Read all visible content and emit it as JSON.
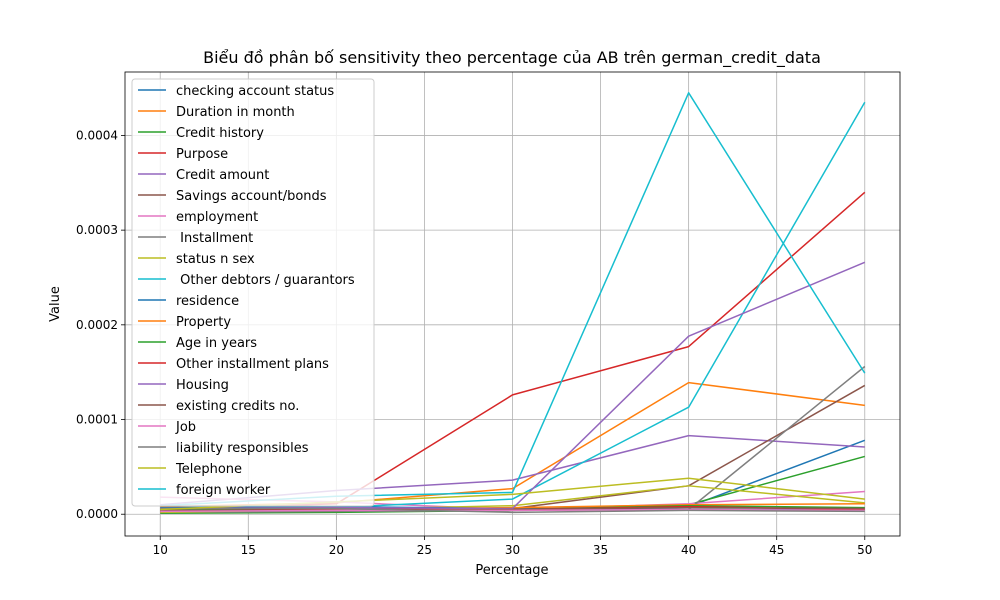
{
  "chart_data": {
    "type": "line",
    "title": "Biểu đồ phân bố sensitivity theo percentage của AB trên german_credit_data",
    "xlabel": "Percentage",
    "ylabel": "Value",
    "x": [
      10,
      20,
      30,
      40,
      50
    ],
    "xlim": [
      8,
      52
    ],
    "ylim": [
      -2.3e-05,
      0.000467
    ],
    "x_ticks": [
      10,
      15,
      20,
      25,
      30,
      35,
      40,
      45,
      50
    ],
    "x_tick_labels": [
      "10",
      "15",
      "20",
      "25",
      "30",
      "35",
      "40",
      "45",
      "50"
    ],
    "y_ticks": [
      0,
      0.0001,
      0.0002,
      0.0003,
      0.0004
    ],
    "y_tick_labels": [
      "0.0000",
      "0.0001",
      "0.0002",
      "0.0003",
      "0.0004"
    ],
    "grid": true,
    "legend_position": "top-left",
    "series": [
      {
        "name": "checking account status",
        "color": "#1f77b4",
        "values": [
          4e-06,
          5e-06,
          6e-06,
          8e-06,
          7.8e-05
        ]
      },
      {
        "name": "Duration in month",
        "color": "#ff7f0e",
        "values": [
          8e-06,
          1.2e-05,
          2.7e-05,
          0.000139,
          0.000115
        ]
      },
      {
        "name": "Credit history",
        "color": "#2ca02c",
        "values": [
          1e-06,
          2e-06,
          4e-06,
          1e-05,
          6.1e-05
        ]
      },
      {
        "name": "Purpose",
        "color": "#d62728",
        "values": [
          5e-06,
          1.1e-05,
          0.000126,
          0.000177,
          0.00034
        ]
      },
      {
        "name": "Credit amount",
        "color": "#9467bd",
        "values": [
          1e-05,
          2.5e-05,
          3.6e-05,
          8.3e-05,
          7.1e-05
        ]
      },
      {
        "name": "Savings account/bonds",
        "color": "#8c564b",
        "values": [
          3e-06,
          4e-06,
          6e-06,
          3e-05,
          0.000136
        ]
      },
      {
        "name": "employment",
        "color": "#e377c2",
        "values": [
          1.8e-05,
          1.3e-05,
          5e-06,
          1.1e-05,
          2.4e-05
        ]
      },
      {
        "name": " Installment",
        "color": "#7f7f7f",
        "values": [
          2e-06,
          3e-06,
          4e-06,
          5e-06,
          0.000156
        ]
      },
      {
        "name": "status n sex",
        "color": "#bcbd22",
        "values": [
          2e-06,
          5e-06,
          9e-06,
          3e-05,
          1.2e-05
        ]
      },
      {
        "name": " Other debtors / guarantors",
        "color": "#17becf",
        "values": [
          5e-06,
          7e-06,
          1.6e-05,
          0.000113,
          0.000435
        ]
      },
      {
        "name": "residence",
        "color": "#1f77b4",
        "values": [
          7e-06,
          8e-06,
          6e-06,
          5e-06,
          5e-06
        ]
      },
      {
        "name": "Property",
        "color": "#ff7f0e",
        "values": [
          4e-06,
          5e-06,
          7e-06,
          1e-05,
          1.1e-05
        ]
      },
      {
        "name": "Age in years",
        "color": "#2ca02c",
        "values": [
          5e-06,
          6e-06,
          5e-06,
          9e-06,
          7e-06
        ]
      },
      {
        "name": "Other installment plans",
        "color": "#d62728",
        "values": [
          3e-06,
          6e-06,
          5e-06,
          8e-06,
          5e-06
        ]
      },
      {
        "name": "Housing",
        "color": "#9467bd",
        "values": [
          6e-06,
          7e-06,
          6e-06,
          0.000188,
          0.000266
        ]
      },
      {
        "name": "existing credits no.",
        "color": "#8c564b",
        "values": [
          4e-06,
          4e-06,
          5e-06,
          7e-06,
          6e-06
        ]
      },
      {
        "name": "Job",
        "color": "#e377c2",
        "values": [
          3e-06,
          4e-06,
          4e-06,
          5e-06,
          4e-06
        ]
      },
      {
        "name": "liability responsibles",
        "color": "#7f7f7f",
        "values": [
          6e-06,
          6e-06,
          2e-06,
          4e-06,
          3e-06
        ]
      },
      {
        "name": "Telephone",
        "color": "#bcbd22",
        "values": [
          5e-06,
          1.3e-05,
          2.1e-05,
          3.8e-05,
          1.6e-05
        ]
      },
      {
        "name": "foreign worker",
        "color": "#17becf",
        "values": [
          9e-06,
          1.9e-05,
          2.3e-05,
          0.000445,
          0.000149
        ]
      }
    ]
  }
}
